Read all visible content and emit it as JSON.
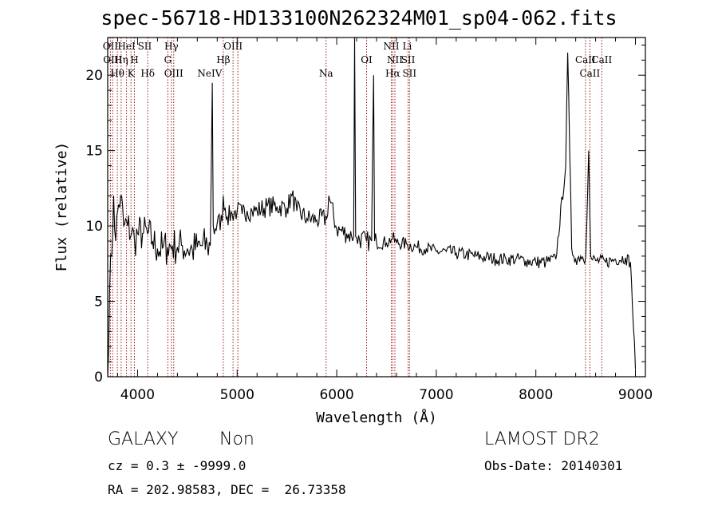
{
  "header": {
    "title": "spec-56718-HD133100N262324M01_sp04-062.fits"
  },
  "info": {
    "class_label": "GALAXY",
    "subclass_label": "Non",
    "survey_label": "LAMOST DR2",
    "cz_text": "cz = 0.3 ± -9999.0",
    "obs_date_text": "Obs-Date: 20140301",
    "coords_text": "RA = 202.98583, DEC =  26.73358"
  },
  "chart_data": {
    "type": "line",
    "xlabel": "Wavelength (Å)",
    "ylabel": "Flux (relative)",
    "xlim": [
      3700,
      9100
    ],
    "ylim": [
      0,
      22.5
    ],
    "xticks": [
      4000,
      5000,
      6000,
      7000,
      8000,
      9000
    ],
    "yticks": [
      0,
      5,
      10,
      15,
      20
    ],
    "line_color": "#000000",
    "marker_color": "#a01818",
    "series": [
      {
        "x": [
          3700,
          3720,
          3740,
          3760,
          3780,
          3800,
          3830,
          3860,
          3900,
          3940,
          3970,
          4000,
          4050,
          4100,
          4150,
          4200,
          4250,
          4300,
          4350,
          4400,
          4450,
          4500,
          4550,
          4600,
          4650,
          4700,
          4730,
          4750,
          4760,
          4780,
          4800,
          4850,
          4860,
          4900,
          4950,
          5000,
          5050,
          5100,
          5150,
          5200,
          5300,
          5400,
          5500,
          5550,
          5600,
          5700,
          5800,
          5900,
          5920,
          6000,
          6100,
          6150,
          6170,
          6180,
          6190,
          6200,
          6300,
          6350,
          6370,
          6380,
          6400,
          6500,
          6560,
          6600,
          6700,
          6800,
          6900,
          7000,
          7100,
          7200,
          7300,
          7400,
          7500,
          7600,
          7700,
          7800,
          7900,
          8000,
          8100,
          8200,
          8300,
          8320,
          8340,
          8360,
          8380,
          8400,
          8450,
          8500,
          8530,
          8550,
          8560,
          8600,
          8700,
          8800,
          8900,
          8950,
          9000
        ],
        "y": [
          0,
          6,
          8,
          12,
          9,
          11,
          12,
          10,
          10,
          9.5,
          9,
          9.5,
          9.5,
          9.5,
          9,
          8.5,
          8.5,
          8.6,
          8.7,
          8.6,
          8.7,
          8.5,
          8.4,
          8.6,
          8.7,
          8.7,
          8.7,
          19.5,
          10,
          9.8,
          10.2,
          10.3,
          12,
          10.6,
          10.8,
          11,
          10.8,
          11,
          11,
          11,
          11.3,
          11.3,
          11.2,
          12,
          11,
          10.5,
          10.4,
          10.5,
          12,
          9.8,
          9.5,
          9.3,
          9.3,
          22.5,
          9.3,
          9.2,
          9.0,
          9.0,
          20,
          9.0,
          8.9,
          8.9,
          9.2,
          8.9,
          8.8,
          8.6,
          8.5,
          8.3,
          8.3,
          8.2,
          8.1,
          8.0,
          7.9,
          7.8,
          7.8,
          7.8,
          7.7,
          7.6,
          7.6,
          7.8,
          14,
          21.5,
          15,
          8.5,
          8.0,
          7.8,
          8.0,
          7.9,
          15,
          8.0,
          7.8,
          7.7,
          7.6,
          7.8,
          7.9,
          7.6,
          0.5
        ]
      }
    ],
    "annotations": [
      {
        "label": "OII",
        "wavelength": 3727,
        "row": 0
      },
      {
        "label": "HeI",
        "wavelength": 3889,
        "row": 0
      },
      {
        "label": "SII",
        "wavelength": 4072,
        "row": 0
      },
      {
        "label": "Hγ",
        "wavelength": 4340,
        "row": 0
      },
      {
        "label": "OIII",
        "wavelength": 4959,
        "row": 0
      },
      {
        "label": "NII",
        "wavelength": 6548,
        "row": 0
      },
      {
        "label": "Li",
        "wavelength": 6708,
        "row": 0
      },
      {
        "label": "OIII",
        "wavelength": 3750,
        "row": 1
      },
      {
        "label": "Hη",
        "wavelength": 3835,
        "row": 1
      },
      {
        "label": "H",
        "wavelength": 3968,
        "row": 1
      },
      {
        "label": "G",
        "wavelength": 4304,
        "row": 1
      },
      {
        "label": "Hβ",
        "wavelength": 4861,
        "row": 1
      },
      {
        "label": "OI",
        "wavelength": 6300,
        "row": 1
      },
      {
        "label": "NII",
        "wavelength": 6584,
        "row": 1
      },
      {
        "label": "SII",
        "wavelength": 6717,
        "row": 1
      },
      {
        "label": "CaII",
        "wavelength": 8498,
        "row": 1
      },
      {
        "label": "CaII",
        "wavelength": 8662,
        "row": 1
      },
      {
        "label": "Hθ",
        "wavelength": 3797,
        "row": 2
      },
      {
        "label": "K",
        "wavelength": 3934,
        "row": 2
      },
      {
        "label": "Hδ",
        "wavelength": 4102,
        "row": 2
      },
      {
        "label": "OIII",
        "wavelength": 4363,
        "row": 2
      },
      {
        "label": "NeIV",
        "wavelength": 4725,
        "row": 2
      },
      {
        "label": "Na",
        "wavelength": 5893,
        "row": 2
      },
      {
        "label": "Hα",
        "wavelength": 6563,
        "row": 2
      },
      {
        "label": "SII",
        "wavelength": 6731,
        "row": 2
      },
      {
        "label": "CaII",
        "wavelength": 8542,
        "row": 2
      }
    ],
    "marker_lines": [
      3727,
      3750,
      3797,
      3835,
      3889,
      3934,
      3968,
      4102,
      4304,
      4340,
      4363,
      4861,
      4959,
      5007,
      5893,
      6300,
      6548,
      6563,
      6584,
      6717,
      6731,
      8498,
      8542,
      8662
    ]
  }
}
